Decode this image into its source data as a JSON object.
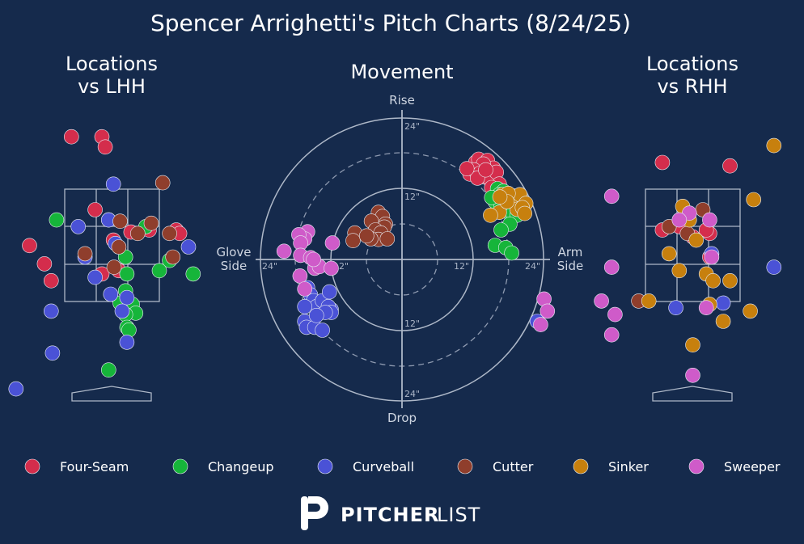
{
  "title": "Spencer Arrighetti's Pitch Charts (8/24/25)",
  "panels": {
    "lhh_title": [
      "Locations",
      "vs LHH"
    ],
    "movement_title": "Movement",
    "rhh_title": [
      "Locations",
      "vs RHH"
    ]
  },
  "movement_axes": {
    "top": "Rise",
    "bottom": "Drop",
    "left": [
      "Glove",
      "Side"
    ],
    "right": [
      "Arm",
      "Side"
    ],
    "ring_labels": [
      "24\"",
      "12\"",
      "12\"",
      "24\"",
      "24\"",
      "12\"",
      "12\"",
      "24\""
    ]
  },
  "legend": [
    {
      "name": "Four-Seam",
      "color": "#d42d4c"
    },
    {
      "name": "Changeup",
      "color": "#16b53a"
    },
    {
      "name": "Curveball",
      "color": "#4a52d6"
    },
    {
      "name": "Cutter",
      "color": "#8f3e2c"
    },
    {
      "name": "Sinker",
      "color": "#c7800e"
    },
    {
      "name": "Sweeper",
      "color": "#cf5bc9"
    }
  ],
  "brand": {
    "bold": "PITCHER",
    "light": "LIST"
  },
  "chart_data": [
    {
      "type": "scatter",
      "name": "lhh_locations",
      "x_unit": "feet from plate center",
      "y_unit": "feet above ground",
      "points": [
        [
          "Four-Seam",
          -0.6,
          4.38
        ],
        [
          "Four-Seam",
          -0.15,
          4.38
        ],
        [
          "Four-Seam",
          -0.1,
          4.23
        ],
        [
          "Four-Seam",
          -0.25,
          3.3
        ],
        [
          "Four-Seam",
          -0.05,
          3.15
        ],
        [
          "Four-Seam",
          0.28,
          2.97
        ],
        [
          "Four-Seam",
          0.55,
          3.0
        ],
        [
          "Four-Seam",
          -1.22,
          2.77
        ],
        [
          "Four-Seam",
          -1.0,
          2.5
        ],
        [
          "Four-Seam",
          -0.9,
          2.25
        ],
        [
          "Four-Seam",
          -0.15,
          2.35
        ],
        [
          "Four-Seam",
          0.1,
          2.4
        ],
        [
          "Four-Seam",
          0.95,
          3.0
        ],
        [
          "Four-Seam",
          1.0,
          2.95
        ],
        [
          "Four-Seam",
          0.02,
          2.85
        ],
        [
          "Changeup",
          -0.82,
          3.15
        ],
        [
          "Changeup",
          0.5,
          3.05
        ],
        [
          "Changeup",
          0.2,
          2.6
        ],
        [
          "Changeup",
          0.85,
          2.55
        ],
        [
          "Changeup",
          0.7,
          2.4
        ],
        [
          "Changeup",
          1.2,
          2.35
        ],
        [
          "Changeup",
          0.2,
          2.1
        ],
        [
          "Changeup",
          0.3,
          1.9
        ],
        [
          "Changeup",
          0.35,
          1.77
        ],
        [
          "Changeup",
          0.12,
          1.92
        ],
        [
          "Changeup",
          0.2,
          1.75
        ],
        [
          "Changeup",
          0.22,
          1.56
        ],
        [
          "Changeup",
          0.25,
          1.52
        ],
        [
          "Changeup",
          -0.05,
          0.93
        ],
        [
          "Changeup",
          0.22,
          2.35
        ],
        [
          "Curveball",
          0.02,
          3.68
        ],
        [
          "Curveball",
          -0.05,
          3.15
        ],
        [
          "Curveball",
          -0.5,
          3.05
        ],
        [
          "Curveball",
          0.05,
          2.8
        ],
        [
          "Curveball",
          -0.4,
          2.6
        ],
        [
          "Curveball",
          -0.25,
          2.3
        ],
        [
          "Curveball",
          -0.02,
          2.05
        ],
        [
          "Curveball",
          0.22,
          2.0
        ],
        [
          "Curveball",
          0.15,
          1.8
        ],
        [
          "Curveball",
          -0.9,
          1.8
        ],
        [
          "Curveball",
          0.22,
          1.34
        ],
        [
          "Curveball",
          -0.88,
          1.18
        ],
        [
          "Curveball",
          -1.42,
          0.65
        ],
        [
          "Curveball",
          1.13,
          2.75
        ],
        [
          "Cutter",
          0.75,
          3.7
        ],
        [
          "Cutter",
          0.12,
          3.13
        ],
        [
          "Cutter",
          0.58,
          3.1
        ],
        [
          "Cutter",
          0.38,
          2.95
        ],
        [
          "Cutter",
          0.1,
          2.75
        ],
        [
          "Cutter",
          -0.4,
          2.65
        ],
        [
          "Cutter",
          0.03,
          2.45
        ],
        [
          "Cutter",
          0.9,
          2.6
        ],
        [
          "Cutter",
          0.85,
          2.95
        ]
      ]
    },
    {
      "type": "scatter",
      "name": "movement",
      "x_unit": "inches (negative = glove side)",
      "y_unit": "inches (positive = rise)",
      "points": [
        [
          "Four-Seam",
          12.5,
          16.5
        ],
        [
          "Four-Seam",
          13.0,
          17.0
        ],
        [
          "Four-Seam",
          14.5,
          16.8
        ],
        [
          "Four-Seam",
          15.5,
          15.5
        ],
        [
          "Four-Seam",
          13.8,
          16.2
        ],
        [
          "Four-Seam",
          11.5,
          14.5
        ],
        [
          "Four-Seam",
          12.2,
          15.2
        ],
        [
          "Four-Seam",
          13.2,
          14.6
        ],
        [
          "Four-Seam",
          14.0,
          14.0
        ],
        [
          "Four-Seam",
          15.0,
          13.5
        ],
        [
          "Four-Seam",
          12.8,
          13.8
        ],
        [
          "Four-Seam",
          16.0,
          14.8
        ],
        [
          "Four-Seam",
          14.2,
          15.2
        ],
        [
          "Four-Seam",
          11.0,
          15.4
        ],
        [
          "Four-Seam",
          16.5,
          12.8
        ],
        [
          "Four-Seam",
          15.2,
          12.2
        ],
        [
          "Changeup",
          16.2,
          12.0
        ],
        [
          "Changeup",
          17.2,
          11.6
        ],
        [
          "Changeup",
          15.8,
          9.8
        ],
        [
          "Changeup",
          16.8,
          9.2
        ],
        [
          "Changeup",
          17.6,
          8.2
        ],
        [
          "Changeup",
          18.8,
          7.8
        ],
        [
          "Changeup",
          19.5,
          7.5
        ],
        [
          "Changeup",
          18.3,
          6.0
        ],
        [
          "Changeup",
          16.8,
          5.0
        ],
        [
          "Changeup",
          15.8,
          2.4
        ],
        [
          "Changeup",
          17.6,
          2.0
        ],
        [
          "Changeup",
          18.6,
          1.1
        ],
        [
          "Changeup",
          16.5,
          11.0
        ],
        [
          "Changeup",
          15.2,
          10.5
        ],
        [
          "Curveball",
          -16.0,
          -4.8
        ],
        [
          "Curveball",
          -15.5,
          -6.0
        ],
        [
          "Curveball",
          -15.0,
          -7.0
        ],
        [
          "Curveball",
          -14.5,
          -8.0
        ],
        [
          "Curveball",
          -13.5,
          -7.0
        ],
        [
          "Curveball",
          -12.3,
          -5.5
        ],
        [
          "Curveball",
          -12.0,
          -8.5
        ],
        [
          "Curveball",
          -16.5,
          -8.0
        ],
        [
          "Curveball",
          -16.5,
          -10.5
        ],
        [
          "Curveball",
          -16.2,
          -11.5
        ],
        [
          "Curveball",
          -14.8,
          -11.5
        ],
        [
          "Curveball",
          -13.5,
          -12.0
        ],
        [
          "Curveball",
          -12.5,
          -8.0
        ],
        [
          "Curveball",
          -12.0,
          -9.0
        ],
        [
          "Curveball",
          -13.0,
          -9.0
        ],
        [
          "Curveball",
          -14.5,
          -9.5
        ],
        [
          "Cutter",
          -4.0,
          8.0
        ],
        [
          "Cutter",
          -3.3,
          7.3
        ],
        [
          "Cutter",
          -2.8,
          6.0
        ],
        [
          "Cutter",
          -3.0,
          5.5
        ],
        [
          "Cutter",
          -5.2,
          6.5
        ],
        [
          "Cutter",
          -4.5,
          5.0
        ],
        [
          "Cutter",
          -3.6,
          4.5
        ],
        [
          "Cutter",
          -4.0,
          3.4
        ],
        [
          "Cutter",
          -2.5,
          3.5
        ],
        [
          "Cutter",
          -5.3,
          3.5
        ],
        [
          "Cutter",
          -8.0,
          4.5
        ],
        [
          "Cutter",
          -8.3,
          3.2
        ],
        [
          "Cutter",
          -6.0,
          4.0
        ],
        [
          "Sinker",
          17.0,
          11.0
        ],
        [
          "Sinker",
          18.8,
          10.8
        ],
        [
          "Sinker",
          20.0,
          11.0
        ],
        [
          "Sinker",
          21.0,
          9.5
        ],
        [
          "Sinker",
          19.5,
          8.5
        ],
        [
          "Sinker",
          16.5,
          8.0
        ],
        [
          "Sinker",
          20.4,
          8.8
        ],
        [
          "Sinker",
          15.0,
          7.5
        ],
        [
          "Sinker",
          18.0,
          11.2
        ],
        [
          "Sinker",
          17.8,
          9.8
        ],
        [
          "Sinker",
          16.6,
          10.6
        ],
        [
          "Sinker",
          20.8,
          7.8
        ],
        [
          "Sweeper",
          -16.0,
          4.7
        ],
        [
          "Sweeper",
          -16.5,
          3.5
        ],
        [
          "Sweeper",
          -17.5,
          4.2
        ],
        [
          "Sweeper",
          -17.2,
          2.8
        ],
        [
          "Sweeper",
          -20.0,
          1.4
        ],
        [
          "Sweeper",
          -17.2,
          0.7
        ],
        [
          "Sweeper",
          -15.5,
          0.3
        ],
        [
          "Sweeper",
          -14.8,
          -1.5
        ],
        [
          "Sweeper",
          -14.0,
          -1.2
        ],
        [
          "Sweeper",
          -12.0,
          -1.5
        ],
        [
          "Sweeper",
          -11.8,
          2.8
        ],
        [
          "Sweeper",
          -17.3,
          -2.8
        ],
        [
          "Sweeper",
          -16.5,
          -5.0
        ],
        [
          "Sweeper",
          -15.0,
          0.0
        ]
      ]
    },
    {
      "type": "scatter",
      "name": "rhh_locations",
      "x_unit": "feet from plate center",
      "y_unit": "feet above ground",
      "points": [
        [
          "Four-Seam",
          -0.45,
          4.0
        ],
        [
          "Four-Seam",
          0.55,
          3.95
        ],
        [
          "Four-Seam",
          -0.45,
          3.0
        ],
        [
          "Four-Seam",
          0.25,
          2.95
        ],
        [
          "Four-Seam",
          -0.2,
          3.05
        ],
        [
          "Four-Seam",
          0.25,
          2.6
        ],
        [
          "Four-Seam",
          0.2,
          3.0
        ],
        [
          "Four-Seam",
          0.0,
          2.9
        ],
        [
          "Curveball",
          -2.3,
          1.65
        ],
        [
          "Curveball",
          -0.25,
          1.85
        ],
        [
          "Curveball",
          0.45,
          1.92
        ],
        [
          "Curveball",
          0.28,
          2.65
        ],
        [
          "Curveball",
          1.2,
          2.45
        ],
        [
          "Cutter",
          -0.8,
          1.95
        ],
        [
          "Cutter",
          -0.08,
          2.95
        ],
        [
          "Cutter",
          0.15,
          3.3
        ],
        [
          "Cutter",
          -0.35,
          3.05
        ],
        [
          "Sinker",
          -0.15,
          3.35
        ],
        [
          "Sinker",
          -0.35,
          2.65
        ],
        [
          "Sinker",
          -0.2,
          2.4
        ],
        [
          "Sinker",
          0.2,
          2.35
        ],
        [
          "Sinker",
          0.3,
          2.25
        ],
        [
          "Sinker",
          0.55,
          2.25
        ],
        [
          "Sinker",
          0.45,
          1.65
        ],
        [
          "Sinker",
          0.85,
          1.8
        ],
        [
          "Sinker",
          1.2,
          4.25
        ],
        [
          "Sinker",
          0.9,
          3.45
        ],
        [
          "Sinker",
          0.0,
          1.3
        ],
        [
          "Sinker",
          -0.65,
          1.95
        ],
        [
          "Sinker",
          0.05,
          2.85
        ],
        [
          "Sinker",
          0.25,
          1.9
        ],
        [
          "Sinker",
          -0.05,
          3.15
        ],
        [
          "Sweeper",
          -1.2,
          3.5
        ],
        [
          "Sweeper",
          -0.05,
          3.25
        ],
        [
          "Sweeper",
          0.25,
          3.15
        ],
        [
          "Sweeper",
          -0.2,
          3.15
        ],
        [
          "Sweeper",
          -1.2,
          2.45
        ],
        [
          "Sweeper",
          0.28,
          2.6
        ],
        [
          "Sweeper",
          -1.15,
          1.75
        ],
        [
          "Sweeper",
          -1.35,
          1.95
        ],
        [
          "Sweeper",
          -2.2,
          1.98
        ],
        [
          "Sweeper",
          -2.15,
          1.8
        ],
        [
          "Sweeper",
          0.2,
          1.85
        ],
        [
          "Sweeper",
          -1.2,
          1.45
        ],
        [
          "Sweeper",
          0.0,
          0.85
        ],
        [
          "Sweeper",
          -2.25,
          1.6
        ]
      ]
    }
  ]
}
